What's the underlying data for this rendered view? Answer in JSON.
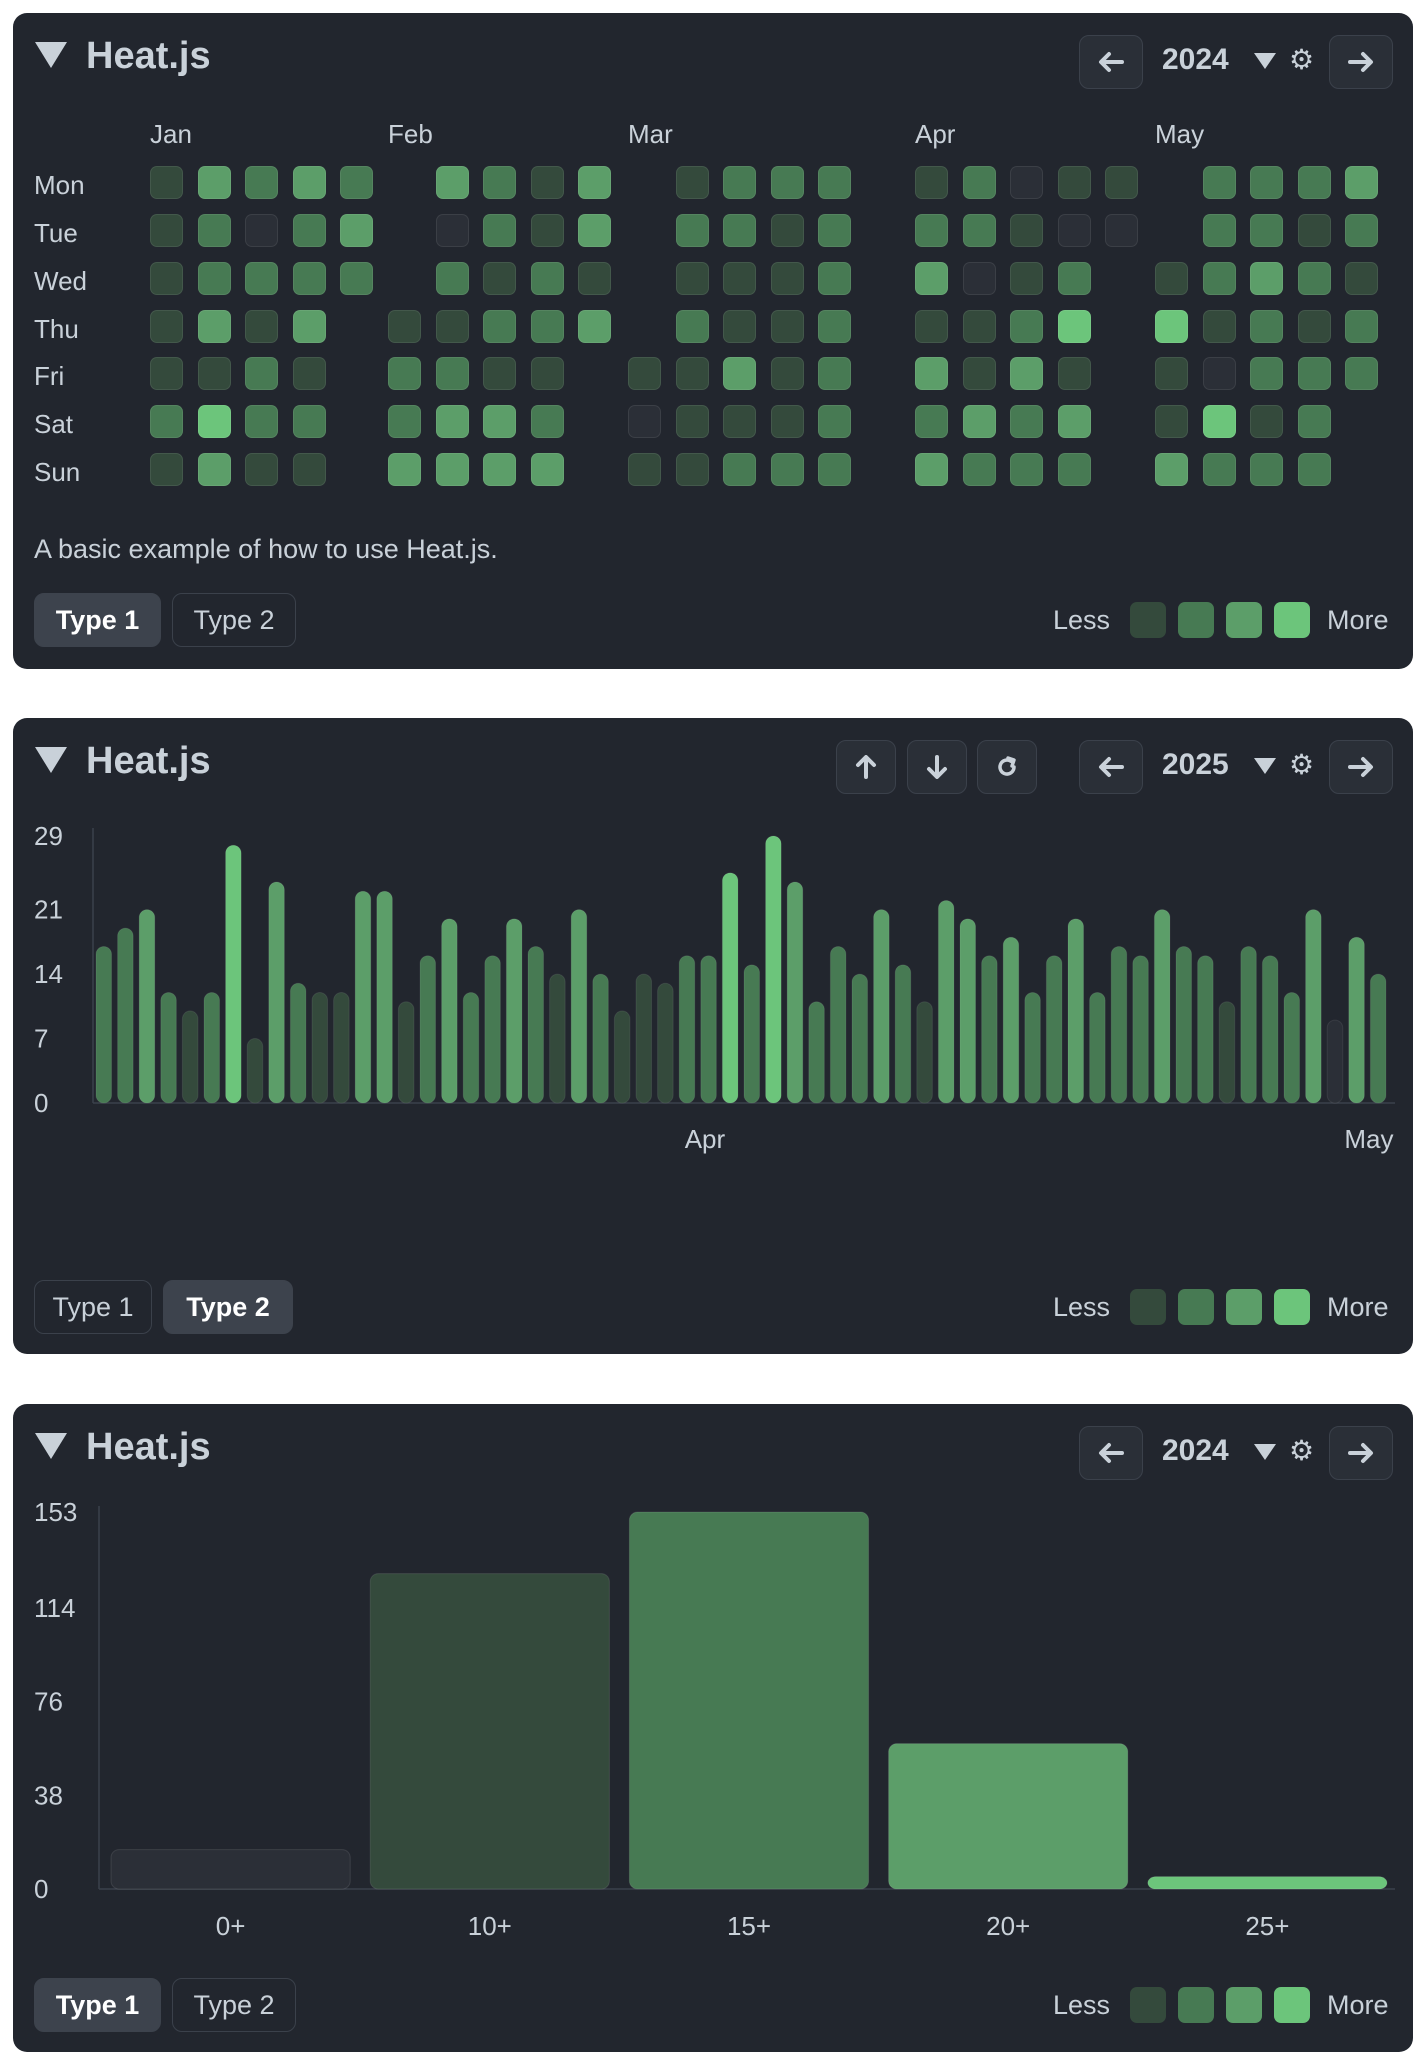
{
  "colors": {
    "panel_bg": "#22262e",
    "level0": "#2b2f37",
    "level1": "#344a3c",
    "level2": "#477a53",
    "level3": "#5c9e69",
    "level4": "#6cc57b"
  },
  "icons": {
    "collapse": "triangle-down-icon",
    "prev": "arrow-left-icon",
    "next": "arrow-right-icon",
    "settings": "gear-icon",
    "year_dropdown": "caret-down-icon",
    "export": "arrow-up-icon",
    "import": "arrow-down-icon",
    "refresh": "refresh-icon"
  },
  "panels": [
    {
      "title": "Heat.js",
      "year": "2024",
      "description": "A basic example of how to use Heat.js.",
      "tabs": [
        "Type 1",
        "Type 2"
      ],
      "active_tab": 0,
      "legend": {
        "less": "Less",
        "more": "More"
      }
    },
    {
      "title": "Heat.js",
      "year": "2025",
      "tabs": [
        "Type 1",
        "Type 2"
      ],
      "active_tab": 1,
      "legend": {
        "less": "Less",
        "more": "More"
      }
    },
    {
      "title": "Heat.js",
      "year": "2024",
      "tabs": [
        "Type 1",
        "Type 2"
      ],
      "active_tab": 0,
      "legend": {
        "less": "Less",
        "more": "More"
      }
    }
  ],
  "chart_data": [
    {
      "type": "heatmap",
      "months": [
        "Jan",
        "Feb",
        "Mar",
        "Apr",
        "May"
      ],
      "days": [
        "Mon",
        "Tue",
        "Wed",
        "Thu",
        "Fri",
        "Sat",
        "Sun"
      ],
      "weeks": [
        [
          1,
          1,
          1,
          1,
          1,
          2,
          1
        ],
        [
          3,
          2,
          2,
          3,
          1,
          4,
          3
        ],
        [
          2,
          0,
          2,
          1,
          2,
          2,
          1
        ],
        [
          3,
          2,
          2,
          3,
          1,
          2,
          1
        ],
        [
          2,
          3,
          2,
          null,
          null,
          null,
          null
        ],
        [
          null,
          null,
          null,
          1,
          2,
          2,
          3
        ],
        [
          3,
          0,
          2,
          1,
          2,
          3,
          3
        ],
        [
          2,
          2,
          1,
          2,
          1,
          3,
          3
        ],
        [
          1,
          1,
          2,
          2,
          1,
          2,
          3
        ],
        [
          3,
          3,
          1,
          3,
          null,
          null,
          null
        ],
        [
          null,
          null,
          null,
          null,
          1,
          0,
          1
        ],
        [
          1,
          2,
          1,
          2,
          1,
          1,
          1
        ],
        [
          2,
          2,
          1,
          1,
          3,
          1,
          2
        ],
        [
          2,
          1,
          1,
          1,
          1,
          1,
          2
        ],
        [
          2,
          2,
          2,
          2,
          2,
          2,
          2
        ],
        [
          1,
          2,
          3,
          1,
          3,
          2,
          3
        ],
        [
          2,
          2,
          0,
          1,
          1,
          3,
          2
        ],
        [
          0,
          1,
          1,
          2,
          3,
          2,
          2
        ],
        [
          1,
          0,
          2,
          4,
          1,
          3,
          2
        ],
        [
          1,
          0,
          null,
          null,
          null,
          null,
          null
        ],
        [
          null,
          null,
          1,
          4,
          1,
          1,
          3
        ],
        [
          2,
          2,
          2,
          1,
          0,
          4,
          2
        ],
        [
          2,
          2,
          3,
          2,
          2,
          1,
          2
        ],
        [
          2,
          1,
          2,
          1,
          2,
          2,
          2
        ],
        [
          3,
          2,
          1,
          2,
          2,
          null,
          null
        ]
      ],
      "levels": [
        0,
        1,
        2,
        3,
        4
      ]
    },
    {
      "type": "bar",
      "yticks": [
        0,
        7,
        14,
        21,
        29
      ],
      "ylim": [
        0,
        29
      ],
      "x_labels": [
        "Apr",
        "May"
      ],
      "values": [
        17,
        19,
        21,
        12,
        10,
        12,
        28,
        7,
        24,
        13,
        12,
        12,
        23,
        23,
        11,
        16,
        20,
        12,
        16,
        20,
        17,
        14,
        21,
        14,
        10,
        14,
        13,
        16,
        16,
        25,
        15,
        29,
        24,
        11,
        17,
        14,
        21,
        15,
        11,
        22,
        20,
        16,
        18,
        12,
        16,
        20,
        12,
        17,
        16,
        21,
        17,
        16,
        11,
        17,
        16,
        12,
        21,
        9,
        18,
        14
      ],
      "levels": [
        2,
        2,
        3,
        2,
        1,
        2,
        4,
        1,
        3,
        2,
        1,
        1,
        3,
        3,
        1,
        2,
        3,
        2,
        2,
        3,
        2,
        1,
        3,
        2,
        1,
        1,
        1,
        2,
        2,
        4,
        2,
        4,
        3,
        2,
        2,
        2,
        3,
        2,
        1,
        3,
        3,
        2,
        3,
        2,
        2,
        3,
        2,
        2,
        2,
        3,
        2,
        2,
        1,
        2,
        2,
        2,
        3,
        0,
        3,
        2
      ]
    },
    {
      "type": "bar",
      "categories": [
        "0+",
        "10+",
        "15+",
        "20+",
        "25+"
      ],
      "values": [
        16,
        128,
        153,
        59,
        5
      ],
      "yticks": [
        0,
        38,
        76,
        114,
        153
      ],
      "ylim": [
        0,
        153
      ],
      "levels": [
        0,
        1,
        2,
        3,
        4
      ]
    }
  ]
}
